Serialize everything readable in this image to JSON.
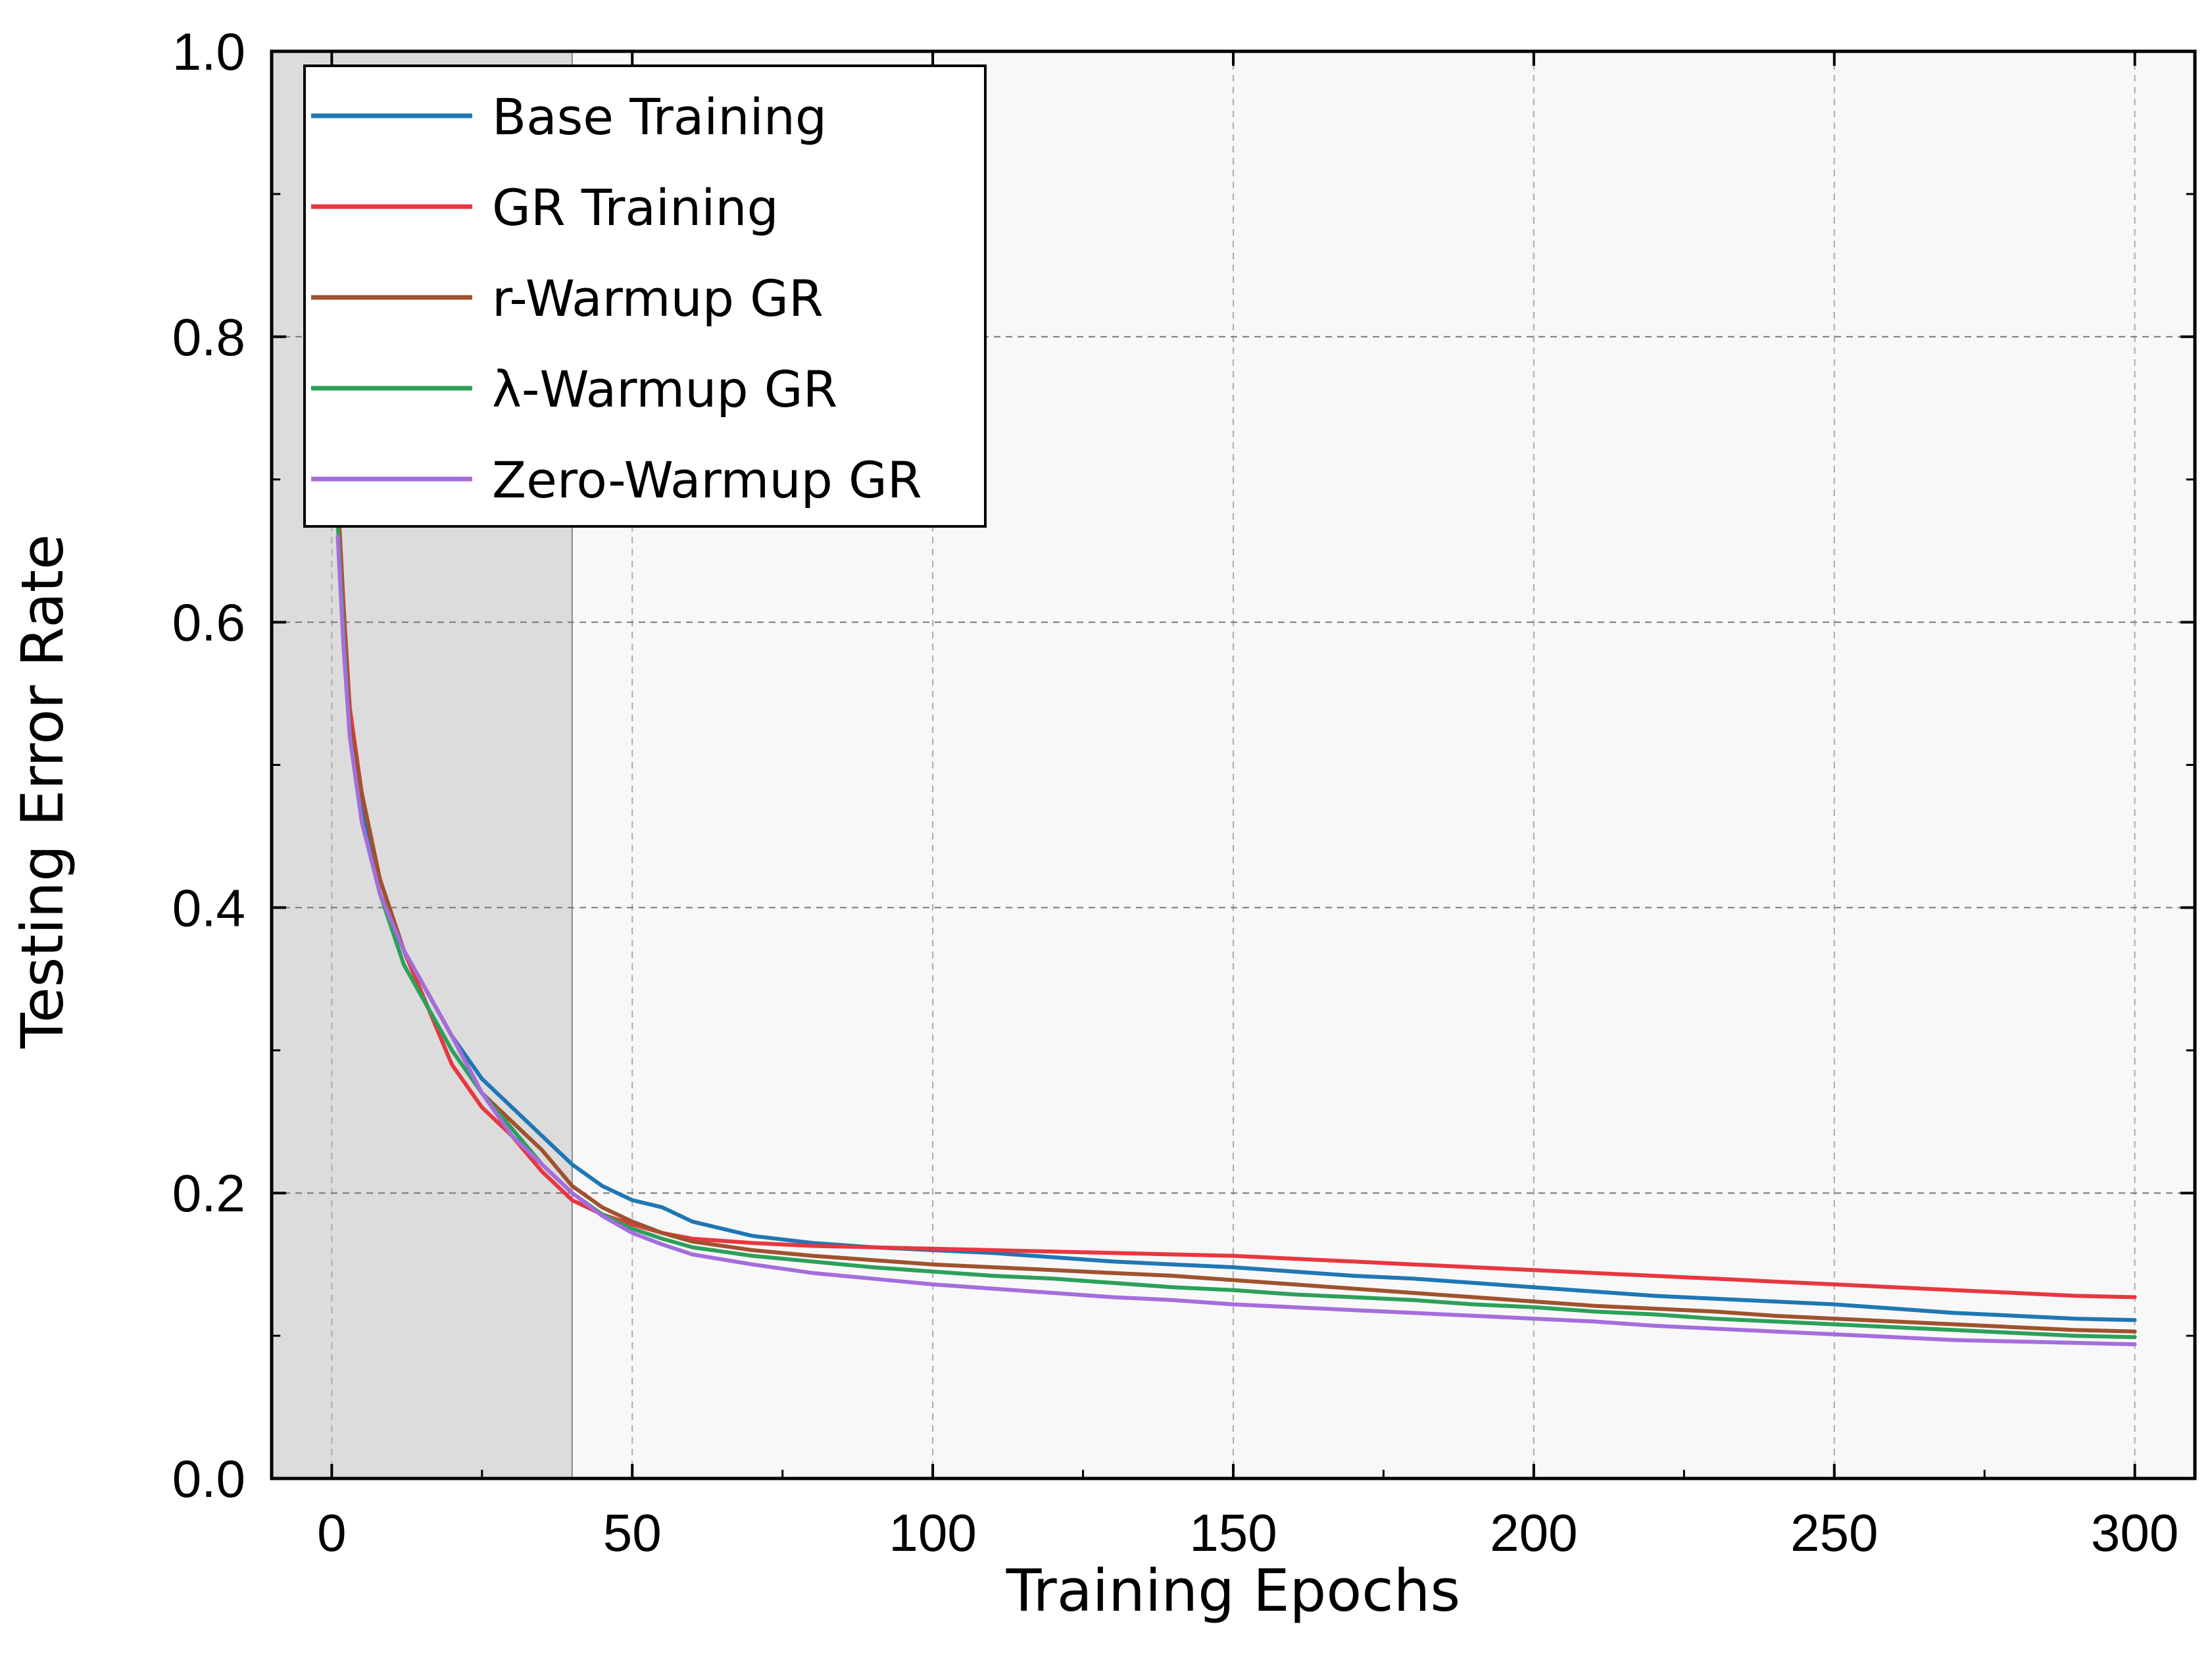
{
  "chart_data": {
    "type": "line",
    "title": "",
    "xlabel": "Training Epochs",
    "ylabel": "Testing  Error  Rate",
    "xlim": [
      -10,
      310
    ],
    "ylim": [
      0.0,
      1.0
    ],
    "xticks": [
      0,
      50,
      100,
      150,
      200,
      250,
      300
    ],
    "yticks": [
      0.0,
      0.2,
      0.4,
      0.6,
      0.8,
      1.0
    ],
    "xtick_labels": [
      "0",
      "50",
      "100",
      "150",
      "200",
      "250",
      "300"
    ],
    "ytick_labels": [
      "0.0",
      "0.2",
      "0.4",
      "0.6",
      "0.8",
      "1.0"
    ],
    "grid": true,
    "legend_position": "top-left",
    "warmup_region": [
      -10,
      40
    ],
    "series": [
      {
        "name": "Base Training",
        "color": "#1f77b4",
        "x": [
          1,
          2,
          3,
          5,
          8,
          12,
          16,
          20,
          25,
          30,
          35,
          40,
          45,
          50,
          55,
          60,
          70,
          80,
          90,
          100,
          110,
          120,
          130,
          140,
          150,
          160,
          170,
          180,
          190,
          200,
          210,
          220,
          230,
          240,
          250,
          260,
          270,
          280,
          290,
          300
        ],
        "y": [
          0.68,
          0.6,
          0.53,
          0.47,
          0.42,
          0.37,
          0.34,
          0.31,
          0.28,
          0.26,
          0.24,
          0.22,
          0.205,
          0.195,
          0.19,
          0.18,
          0.17,
          0.165,
          0.162,
          0.16,
          0.158,
          0.155,
          0.152,
          0.15,
          0.148,
          0.145,
          0.142,
          0.14,
          0.137,
          0.134,
          0.131,
          0.128,
          0.126,
          0.124,
          0.122,
          0.119,
          0.116,
          0.114,
          0.112,
          0.111
        ]
      },
      {
        "name": "GR Training",
        "color": "#e8373f",
        "x": [
          1,
          2,
          3,
          5,
          8,
          12,
          16,
          20,
          25,
          30,
          35,
          40,
          45,
          50,
          55,
          60,
          70,
          80,
          90,
          100,
          110,
          120,
          130,
          140,
          150,
          160,
          170,
          180,
          190,
          200,
          210,
          220,
          230,
          240,
          250,
          260,
          270,
          280,
          290,
          300
        ],
        "y": [
          0.69,
          0.61,
          0.54,
          0.48,
          0.42,
          0.37,
          0.33,
          0.29,
          0.26,
          0.24,
          0.215,
          0.195,
          0.185,
          0.178,
          0.172,
          0.168,
          0.165,
          0.163,
          0.162,
          0.161,
          0.16,
          0.159,
          0.158,
          0.157,
          0.156,
          0.154,
          0.152,
          0.15,
          0.148,
          0.146,
          0.144,
          0.142,
          0.14,
          0.138,
          0.136,
          0.134,
          0.132,
          0.13,
          0.128,
          0.127
        ]
      },
      {
        "name": "r-Warmup GR",
        "color": "#a0522d",
        "x": [
          1,
          2,
          3,
          5,
          8,
          12,
          16,
          20,
          25,
          30,
          35,
          40,
          45,
          50,
          55,
          60,
          70,
          80,
          90,
          100,
          110,
          120,
          130,
          140,
          150,
          160,
          170,
          180,
          190,
          200,
          210,
          220,
          230,
          240,
          250,
          260,
          270,
          280,
          290,
          300
        ],
        "y": [
          0.68,
          0.6,
          0.53,
          0.48,
          0.42,
          0.37,
          0.34,
          0.31,
          0.27,
          0.25,
          0.23,
          0.205,
          0.19,
          0.18,
          0.172,
          0.166,
          0.16,
          0.156,
          0.153,
          0.15,
          0.148,
          0.146,
          0.144,
          0.142,
          0.139,
          0.136,
          0.133,
          0.13,
          0.127,
          0.124,
          0.121,
          0.119,
          0.117,
          0.114,
          0.112,
          0.11,
          0.108,
          0.106,
          0.104,
          0.103
        ]
      },
      {
        "name": "λ-Warmup GR",
        "color": "#2ca05a",
        "x": [
          1,
          2,
          3,
          5,
          8,
          12,
          16,
          20,
          25,
          30,
          35,
          40,
          45,
          50,
          55,
          60,
          70,
          80,
          90,
          100,
          110,
          120,
          130,
          140,
          150,
          160,
          170,
          180,
          190,
          200,
          210,
          220,
          230,
          240,
          250,
          260,
          270,
          280,
          290,
          300
        ],
        "y": [
          0.67,
          0.59,
          0.52,
          0.46,
          0.41,
          0.36,
          0.33,
          0.3,
          0.27,
          0.245,
          0.22,
          0.2,
          0.185,
          0.175,
          0.168,
          0.162,
          0.156,
          0.152,
          0.148,
          0.145,
          0.142,
          0.14,
          0.137,
          0.134,
          0.132,
          0.129,
          0.127,
          0.125,
          0.122,
          0.12,
          0.117,
          0.115,
          0.112,
          0.11,
          0.108,
          0.106,
          0.104,
          0.102,
          0.1,
          0.099
        ]
      },
      {
        "name": "Zero-Warmup GR",
        "color": "#a56ddc",
        "x": [
          1,
          2,
          3,
          5,
          8,
          12,
          16,
          20,
          25,
          30,
          35,
          40,
          45,
          50,
          55,
          60,
          70,
          80,
          90,
          100,
          110,
          120,
          130,
          140,
          150,
          160,
          170,
          180,
          190,
          200,
          210,
          220,
          230,
          240,
          250,
          260,
          270,
          280,
          290,
          300
        ],
        "y": [
          0.66,
          0.58,
          0.52,
          0.46,
          0.41,
          0.37,
          0.34,
          0.31,
          0.27,
          0.24,
          0.22,
          0.2,
          0.184,
          0.172,
          0.164,
          0.157,
          0.15,
          0.144,
          0.14,
          0.136,
          0.133,
          0.13,
          0.127,
          0.125,
          0.122,
          0.12,
          0.118,
          0.116,
          0.114,
          0.112,
          0.11,
          0.107,
          0.105,
          0.103,
          0.101,
          0.099,
          0.097,
          0.096,
          0.095,
          0.094
        ]
      }
    ]
  },
  "colors": {
    "plot_background": "#f8f8f8",
    "warmup_shade": "#dcdcdc",
    "grid": "#aaaaaa"
  }
}
